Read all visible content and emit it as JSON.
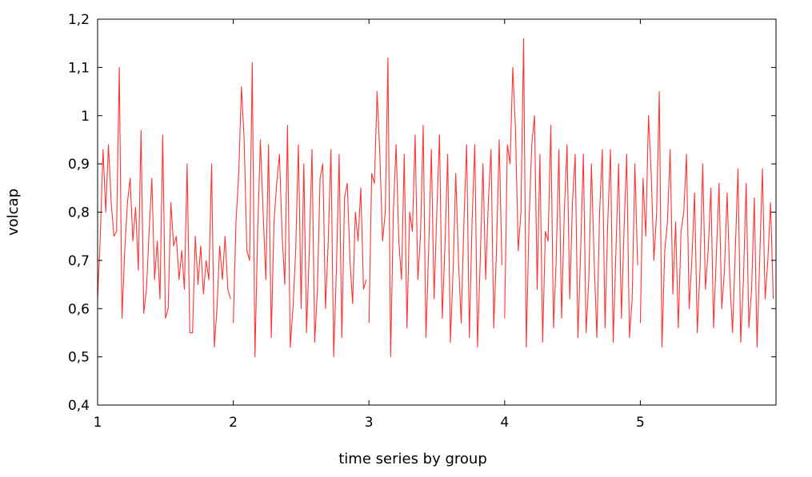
{
  "chart_data": {
    "type": "line",
    "xlabel": "time series by group",
    "ylabel": "volcap",
    "xlim": [
      1,
      6.0
    ],
    "ylim": [
      0.4,
      1.2
    ],
    "x_ticks": [
      1,
      2,
      3,
      4,
      5
    ],
    "x_tick_labels": [
      "1",
      "2",
      "3",
      "4",
      "5"
    ],
    "y_ticks": [
      0.4,
      0.5,
      0.6,
      0.7,
      0.8,
      0.9,
      1.0,
      1.1,
      1.2
    ],
    "y_tick_labels": [
      "0,4",
      "0,5",
      "0,6",
      "0,7",
      "0,8",
      "0,9",
      "1",
      "1,1",
      "1,2"
    ],
    "grid": false,
    "legend": "none",
    "line_color": "#ff3333",
    "series": [
      {
        "segments": [
          {
            "x": [
              1.0,
              1.02,
              1.04,
              1.06,
              1.08,
              1.1,
              1.12,
              1.14,
              1.16,
              1.18,
              1.2,
              1.22,
              1.24,
              1.26,
              1.28,
              1.3,
              1.32,
              1.34,
              1.36,
              1.38,
              1.4,
              1.42,
              1.44,
              1.46,
              1.48,
              1.5,
              1.52,
              1.54,
              1.56,
              1.58,
              1.6,
              1.62,
              1.64,
              1.66,
              1.68,
              1.7,
              1.72,
              1.74,
              1.76,
              1.78,
              1.8,
              1.82,
              1.84,
              1.86,
              1.88,
              1.9,
              1.92,
              1.94,
              1.96,
              1.98
            ],
            "y": [
              0.62,
              0.75,
              0.93,
              0.8,
              0.94,
              0.82,
              0.75,
              0.76,
              1.1,
              0.58,
              0.72,
              0.82,
              0.87,
              0.74,
              0.81,
              0.68,
              0.97,
              0.59,
              0.64,
              0.76,
              0.87,
              0.66,
              0.74,
              0.62,
              0.96,
              0.58,
              0.6,
              0.82,
              0.73,
              0.75,
              0.66,
              0.72,
              0.64,
              0.9,
              0.55,
              0.55,
              0.75,
              0.65,
              0.73,
              0.63,
              0.7,
              0.66,
              0.9,
              0.52,
              0.6,
              0.73,
              0.66,
              0.75,
              0.64,
              0.62
            ]
          },
          {
            "x": [
              2.0,
              2.02,
              2.04,
              2.06,
              2.08,
              2.1,
              2.12,
              2.14,
              2.16,
              2.18,
              2.2,
              2.22,
              2.24,
              2.26,
              2.28,
              2.3,
              2.32,
              2.34,
              2.36,
              2.38,
              2.4,
              2.42,
              2.44,
              2.46,
              2.48,
              2.5,
              2.52,
              2.54,
              2.56,
              2.58,
              2.6,
              2.62,
              2.64,
              2.66,
              2.68,
              2.7,
              2.72,
              2.74,
              2.76,
              2.78,
              2.8,
              2.82,
              2.84,
              2.86,
              2.88,
              2.9,
              2.92,
              2.94,
              2.96,
              2.98
            ],
            "y": [
              0.57,
              0.78,
              0.88,
              1.06,
              0.95,
              0.72,
              0.7,
              1.11,
              0.5,
              0.76,
              0.95,
              0.8,
              0.66,
              0.94,
              0.54,
              0.78,
              0.86,
              0.92,
              0.75,
              0.65,
              0.98,
              0.52,
              0.6,
              0.72,
              0.94,
              0.6,
              0.9,
              0.55,
              0.72,
              0.93,
              0.53,
              0.64,
              0.87,
              0.9,
              0.6,
              0.74,
              0.93,
              0.5,
              0.68,
              0.92,
              0.54,
              0.83,
              0.86,
              0.7,
              0.61,
              0.8,
              0.74,
              0.85,
              0.64,
              0.66
            ]
          },
          {
            "x": [
              3.0,
              3.02,
              3.04,
              3.06,
              3.08,
              3.1,
              3.12,
              3.14,
              3.16,
              3.18,
              3.2,
              3.22,
              3.24,
              3.26,
              3.28,
              3.3,
              3.32,
              3.34,
              3.36,
              3.38,
              3.4,
              3.42,
              3.44,
              3.46,
              3.48,
              3.5,
              3.52,
              3.54,
              3.56,
              3.58,
              3.6,
              3.62,
              3.64,
              3.66,
              3.68,
              3.7,
              3.72,
              3.74,
              3.76,
              3.78,
              3.8,
              3.82,
              3.84,
              3.86,
              3.88,
              3.9,
              3.92,
              3.94,
              3.96,
              3.98
            ],
            "y": [
              0.57,
              0.88,
              0.86,
              1.05,
              0.92,
              0.74,
              0.8,
              1.12,
              0.5,
              0.8,
              0.94,
              0.74,
              0.66,
              0.92,
              0.56,
              0.8,
              0.76,
              0.96,
              0.66,
              0.75,
              0.98,
              0.54,
              0.72,
              0.93,
              0.62,
              0.8,
              0.96,
              0.58,
              0.73,
              0.92,
              0.53,
              0.68,
              0.88,
              0.7,
              0.57,
              0.78,
              0.94,
              0.54,
              0.78,
              0.94,
              0.52,
              0.7,
              0.9,
              0.66,
              0.82,
              0.93,
              0.56,
              0.72,
              0.95,
              0.69
            ]
          },
          {
            "x": [
              4.0,
              4.02,
              4.04,
              4.06,
              4.08,
              4.1,
              4.12,
              4.14,
              4.16,
              4.18,
              4.2,
              4.22,
              4.24,
              4.26,
              4.28,
              4.3,
              4.32,
              4.34,
              4.36,
              4.38,
              4.4,
              4.42,
              4.44,
              4.46,
              4.48,
              4.5,
              4.52,
              4.54,
              4.56,
              4.58,
              4.6,
              4.62,
              4.64,
              4.66,
              4.68,
              4.7,
              4.72,
              4.74,
              4.76,
              4.78,
              4.8,
              4.82,
              4.84,
              4.86,
              4.88,
              4.9,
              4.92,
              4.94,
              4.96,
              4.98
            ],
            "y": [
              0.58,
              0.94,
              0.9,
              1.1,
              0.97,
              0.72,
              0.8,
              1.16,
              0.52,
              0.78,
              0.94,
              1.0,
              0.64,
              0.92,
              0.53,
              0.76,
              0.74,
              0.98,
              0.56,
              0.7,
              0.93,
              0.58,
              0.8,
              0.94,
              0.62,
              0.82,
              0.92,
              0.54,
              0.72,
              0.92,
              0.55,
              0.66,
              0.9,
              0.7,
              0.54,
              0.8,
              0.93,
              0.56,
              0.78,
              0.93,
              0.53,
              0.72,
              0.9,
              0.58,
              0.76,
              0.92,
              0.54,
              0.62,
              0.9,
              0.69
            ]
          },
          {
            "x": [
              5.0,
              5.02,
              5.04,
              5.06,
              5.08,
              5.1,
              5.12,
              5.14,
              5.16,
              5.18,
              5.2,
              5.22,
              5.24,
              5.26,
              5.28,
              5.3,
              5.32,
              5.34,
              5.36,
              5.38,
              5.4,
              5.42,
              5.44,
              5.46,
              5.48,
              5.5,
              5.52,
              5.54,
              5.56,
              5.58,
              5.6,
              5.62,
              5.64,
              5.66,
              5.68,
              5.7,
              5.72,
              5.74,
              5.76,
              5.78,
              5.8,
              5.82,
              5.84,
              5.86,
              5.88,
              5.9,
              5.92,
              5.94,
              5.96,
              5.98
            ],
            "y": [
              0.57,
              0.87,
              0.75,
              1.0,
              0.88,
              0.7,
              0.8,
              1.05,
              0.52,
              0.72,
              0.78,
              0.93,
              0.63,
              0.78,
              0.56,
              0.76,
              0.8,
              0.92,
              0.6,
              0.7,
              0.84,
              0.55,
              0.68,
              0.9,
              0.64,
              0.72,
              0.85,
              0.56,
              0.71,
              0.86,
              0.6,
              0.68,
              0.84,
              0.66,
              0.55,
              0.72,
              0.89,
              0.53,
              0.66,
              0.86,
              0.56,
              0.64,
              0.83,
              0.52,
              0.7,
              0.89,
              0.62,
              0.7,
              0.82,
              0.62
            ]
          }
        ]
      }
    ]
  }
}
